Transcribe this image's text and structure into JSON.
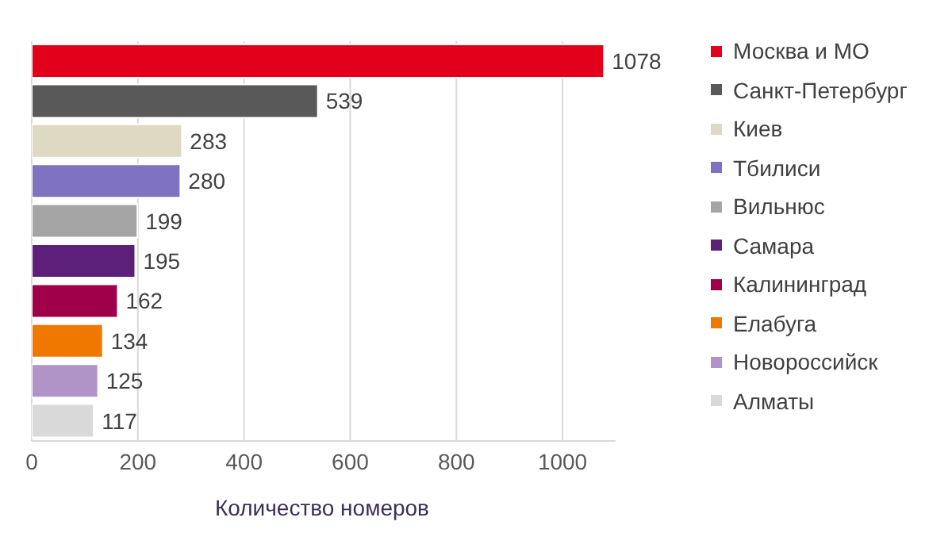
{
  "chart_data": {
    "type": "bar",
    "orientation": "horizontal",
    "stacked": true,
    "xlabel": "Количество номеров",
    "categories": [
      null,
      null,
      null,
      null,
      null,
      null,
      null,
      null,
      null,
      null
    ],
    "series": [
      {
        "name": "Москва и МО",
        "color": "#e3001b",
        "values": [
          1078,
          null,
          null,
          null,
          null,
          null,
          null,
          null,
          null,
          null
        ]
      },
      {
        "name": "Санкт-Петербург",
        "color": "#595959",
        "values": [
          null,
          539,
          null,
          null,
          null,
          null,
          null,
          null,
          null,
          null
        ]
      },
      {
        "name": "Киев",
        "color": "#ddd9c3",
        "values": [
          null,
          null,
          283,
          null,
          null,
          null,
          null,
          null,
          null,
          null
        ]
      },
      {
        "name": "Тбилиси",
        "color": "#7f72c0",
        "values": [
          null,
          null,
          null,
          280,
          null,
          null,
          null,
          null,
          null,
          null
        ]
      },
      {
        "name": "Вильнюс",
        "color": "#a5a5a5",
        "values": [
          null,
          null,
          null,
          null,
          199,
          null,
          null,
          null,
          null,
          null
        ]
      },
      {
        "name": "Самара",
        "color": "#5c1f7a",
        "values": [
          null,
          null,
          null,
          null,
          null,
          195,
          null,
          null,
          null,
          null
        ]
      },
      {
        "name": "Калининград",
        "color": "#a0004a",
        "values": [
          null,
          null,
          null,
          null,
          null,
          null,
          162,
          null,
          null,
          null
        ]
      },
      {
        "name": "Елабуга",
        "color": "#f07800",
        "values": [
          null,
          null,
          null,
          null,
          null,
          null,
          null,
          134,
          null,
          null
        ]
      },
      {
        "name": "Новороссийск",
        "color": "#b094c8",
        "values": [
          null,
          null,
          null,
          null,
          null,
          null,
          null,
          null,
          125,
          null
        ]
      },
      {
        "name": "Алматы",
        "color": "#d9d9d9",
        "values": [
          null,
          null,
          null,
          null,
          null,
          null,
          null,
          null,
          null,
          117
        ]
      }
    ],
    "xlim": [
      0,
      1100
    ],
    "xticks": [
      0,
      200,
      400,
      600,
      800,
      1000
    ],
    "grid": "x",
    "legend": "right",
    "data_labels": true
  }
}
